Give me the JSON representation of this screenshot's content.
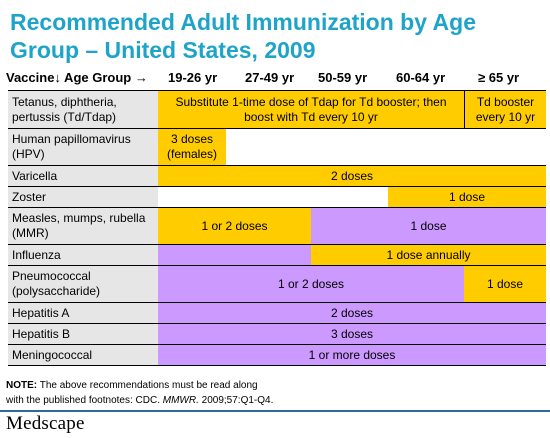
{
  "title": "Recommended Adult Immunization by Age Group – United States, 2009",
  "header": {
    "vaccine": "Vaccine↓ Age Group →",
    "age_groups": [
      "19-26 yr",
      "27-49 yr",
      "50-59 yr",
      "60-64 yr",
      "≥ 65 yr"
    ]
  },
  "rows": {
    "tdap": {
      "name": "Tetanus, diphtheria, pertussis (Td/Tdap)",
      "seg1": "Substitute 1-time dose of Tdap for Td booster; then boost with Td every 10 yr",
      "seg2": "Td booster every 10 yr"
    },
    "hpv": {
      "name": "Human papillomavirus (HPV)",
      "seg1": "3 doses (females)"
    },
    "varicella": {
      "name": "Varicella",
      "seg1": "2 doses"
    },
    "zoster": {
      "name": "Zoster",
      "seg1": "1 dose"
    },
    "mmr": {
      "name": "Measles, mumps, rubella (MMR)",
      "seg1": "1 or 2 doses",
      "seg2": "1 dose"
    },
    "influenza": {
      "name": "Influenza",
      "seg1": "1 dose annually"
    },
    "pneumo": {
      "name": "Pneumococcal (polysaccharide)",
      "seg1": "1 or 2 doses",
      "seg2": "1 dose"
    },
    "hepa": {
      "name": "Hepatitis A",
      "seg1": "2 doses"
    },
    "hepb": {
      "name": "Hepatitis B",
      "seg1": "3 doses"
    },
    "mening": {
      "name": "Meningococcal",
      "seg1": "1 or more doses"
    }
  },
  "colors": {
    "yellow": "#ffcc00",
    "purple": "#cc99ff",
    "title": "#1fa4c9"
  },
  "note": {
    "label": "NOTE:",
    "text1": " The above recommendations must be read along",
    "text2": "with the published footnotes: CDC. ",
    "journal": "MMWR.",
    "text3": " 2009;57:Q1-Q4."
  },
  "brand": "Medscape"
}
